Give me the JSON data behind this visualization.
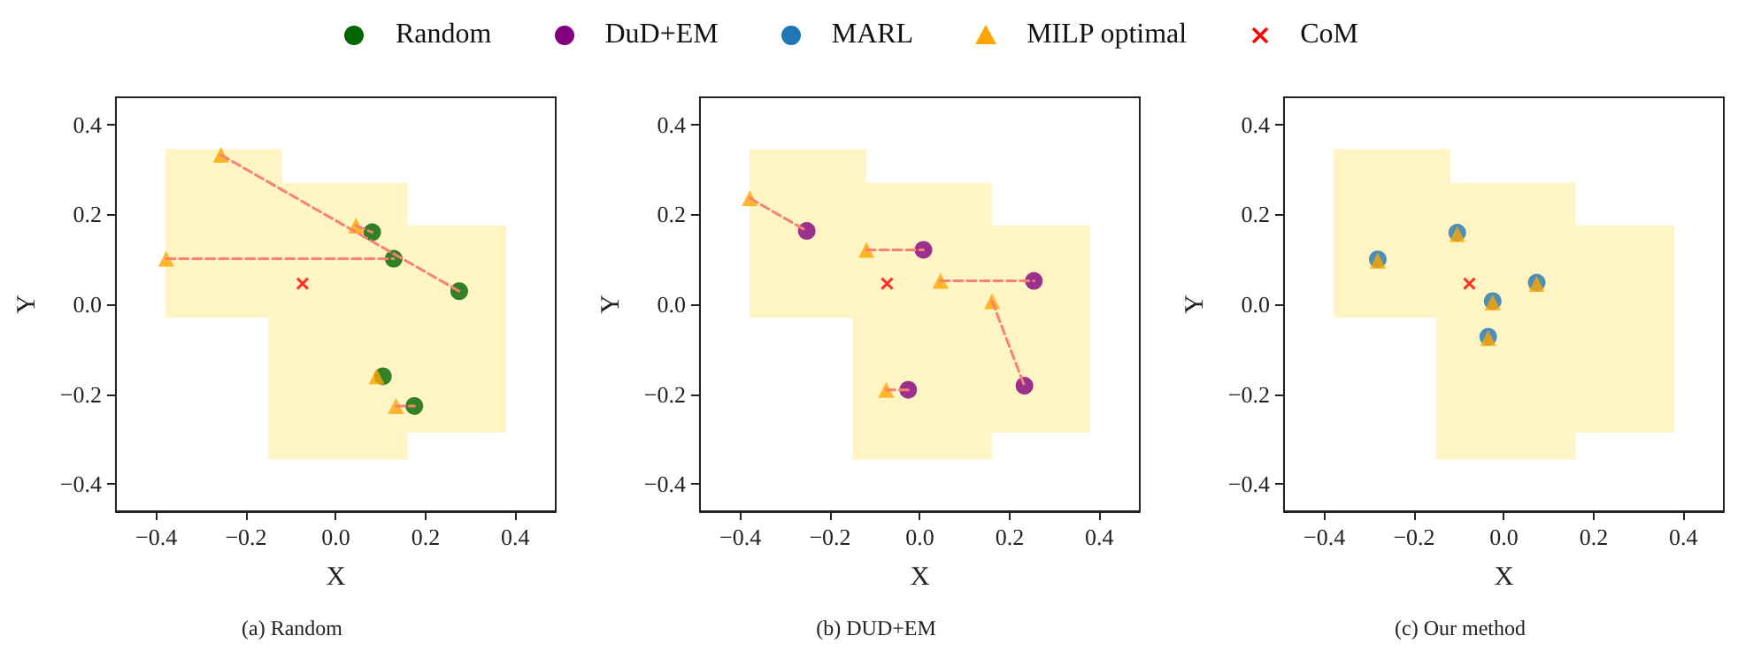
{
  "chart_data": [
    {
      "type": "scatter",
      "title": "(a) Random",
      "xlabel": "X",
      "ylabel": "Y",
      "legend": "top",
      "grid": false,
      "xlim": [
        -0.49,
        0.49
      ],
      "ylim": [
        -0.46,
        0.46
      ],
      "xticks": [
        {
          "value": -0.4,
          "label": "−0.4"
        },
        {
          "value": -0.2,
          "label": "−0.2"
        },
        {
          "value": 0,
          "label": "0.0"
        },
        {
          "value": 0.2,
          "label": "0.2"
        },
        {
          "value": 0.4,
          "label": "0.4"
        }
      ],
      "yticks": [
        {
          "value": -0.4,
          "label": "−0.4"
        },
        {
          "value": -0.2,
          "label": "−0.2"
        },
        {
          "value": 0,
          "label": "0.0"
        },
        {
          "value": 0.2,
          "label": "0.2"
        },
        {
          "value": 0.4,
          "label": "0.4"
        }
      ],
      "series": [
        {
          "type": "area",
          "color": "#fff5c4",
          "x": [
            -0.38,
            -0.12,
            -0.12,
            0.16,
            0.16,
            0.38,
            0.38,
            0.16,
            0.16,
            -0.15,
            -0.15,
            -0.38
          ],
          "values": [
            0.345,
            0.345,
            0.27,
            0.27,
            0.175,
            0.175,
            -0.285,
            -0.285,
            -0.345,
            -0.345,
            -0.03,
            -0.03
          ]
        },
        {
          "type": "line",
          "line_style": "dashed",
          "color": "#fa8072",
          "x": [
            -0.256,
            0.275
          ],
          "values": [
            0.332,
            0.029
          ]
        },
        {
          "type": "line",
          "line_style": "dashed",
          "color": "#fa8072",
          "x": [
            0.045,
            0.081
          ],
          "values": [
            0.175,
            0.16
          ]
        },
        {
          "type": "line",
          "line_style": "dashed",
          "color": "#fa8072",
          "x": [
            -0.378,
            0.129
          ],
          "values": [
            0.101,
            0.101
          ]
        },
        {
          "type": "line",
          "line_style": "dashed",
          "color": "#fa8072",
          "x": [
            0.134,
            0.175
          ],
          "values": [
            -0.226,
            -0.226
          ]
        },
        {
          "name": "Random",
          "marker": "circle",
          "color": "#006400",
          "x": [
            0.081,
            0.129,
            0.275,
            0.105,
            0.175
          ],
          "values": [
            0.16,
            0.101,
            0.029,
            -0.16,
            -0.226
          ]
        },
        {
          "name": "MILP optimal",
          "marker": "triangle",
          "color": "#ffa500",
          "x": [
            -0.256,
            0.045,
            -0.378,
            0.091,
            0.134
          ],
          "values": [
            0.332,
            0.175,
            0.101,
            -0.16,
            -0.226
          ]
        },
        {
          "name": "CoM",
          "marker": "cross",
          "color": "#ff0000",
          "x": [
            -0.074
          ],
          "values": [
            0.046
          ]
        }
      ]
    },
    {
      "type": "scatter",
      "title": "(b) DUD+EM",
      "xlabel": "X",
      "ylabel": "Y",
      "grid": false,
      "xlim": [
        -0.49,
        0.49
      ],
      "ylim": [
        -0.46,
        0.46
      ],
      "xticks": [
        {
          "value": -0.4,
          "label": "−0.4"
        },
        {
          "value": -0.2,
          "label": "−0.2"
        },
        {
          "value": 0,
          "label": "0.0"
        },
        {
          "value": 0.2,
          "label": "0.2"
        },
        {
          "value": 0.4,
          "label": "0.4"
        }
      ],
      "yticks": [
        {
          "value": -0.4,
          "label": "−0.4"
        },
        {
          "value": -0.2,
          "label": "−0.2"
        },
        {
          "value": 0,
          "label": "0.0"
        },
        {
          "value": 0.2,
          "label": "0.2"
        },
        {
          "value": 0.4,
          "label": "0.4"
        }
      ],
      "series": [
        {
          "type": "area",
          "color": "#fff5c4",
          "x": [
            -0.38,
            -0.12,
            -0.12,
            0.16,
            0.16,
            0.38,
            0.38,
            0.16,
            0.16,
            -0.15,
            -0.15,
            -0.38
          ],
          "values": [
            0.345,
            0.345,
            0.27,
            0.27,
            0.175,
            0.175,
            -0.285,
            -0.285,
            -0.345,
            -0.345,
            -0.03,
            -0.03
          ]
        },
        {
          "type": "line",
          "line_style": "dashed",
          "color": "#fa8072",
          "x": [
            -0.379,
            -0.252
          ],
          "values": [
            0.236,
            0.163
          ]
        },
        {
          "type": "line",
          "line_style": "dashed",
          "color": "#fa8072",
          "x": [
            -0.119,
            0.008
          ],
          "values": [
            0.121,
            0.121
          ]
        },
        {
          "type": "line",
          "line_style": "dashed",
          "color": "#fa8072",
          "x": [
            0.046,
            0.254
          ],
          "values": [
            0.052,
            0.052
          ]
        },
        {
          "type": "line",
          "line_style": "dashed",
          "color": "#fa8072",
          "x": [
            0.161,
            0.233
          ],
          "values": [
            0.007,
            -0.181
          ]
        },
        {
          "type": "line",
          "line_style": "dashed",
          "color": "#fa8072",
          "x": [
            -0.075,
            -0.026
          ],
          "values": [
            -0.19,
            -0.19
          ]
        },
        {
          "name": "DuD+EM",
          "marker": "circle",
          "color": "#800080",
          "x": [
            -0.252,
            0.008,
            0.254,
            0.233,
            -0.026
          ],
          "values": [
            0.163,
            0.121,
            0.052,
            -0.181,
            -0.19
          ]
        },
        {
          "name": "MILP optimal",
          "marker": "triangle",
          "color": "#ffa500",
          "x": [
            -0.379,
            -0.119,
            0.046,
            0.161,
            -0.075
          ],
          "values": [
            0.236,
            0.121,
            0.052,
            0.007,
            -0.19
          ]
        },
        {
          "name": "CoM",
          "marker": "cross",
          "color": "#ff0000",
          "x": [
            -0.073
          ],
          "values": [
            0.046
          ]
        }
      ]
    },
    {
      "type": "scatter",
      "title": "(c) Our method",
      "xlabel": "X",
      "ylabel": "Y",
      "grid": false,
      "xlim": [
        -0.49,
        0.49
      ],
      "ylim": [
        -0.46,
        0.46
      ],
      "xticks": [
        {
          "value": -0.4,
          "label": "−0.4"
        },
        {
          "value": -0.2,
          "label": "−0.2"
        },
        {
          "value": 0,
          "label": "0.0"
        },
        {
          "value": 0.2,
          "label": "0.2"
        },
        {
          "value": 0.4,
          "label": "0.4"
        }
      ],
      "yticks": [
        {
          "value": -0.4,
          "label": "−0.4"
        },
        {
          "value": -0.2,
          "label": "−0.2"
        },
        {
          "value": 0,
          "label": "0.0"
        },
        {
          "value": 0.2,
          "label": "0.2"
        },
        {
          "value": 0.4,
          "label": "0.4"
        }
      ],
      "series": [
        {
          "type": "area",
          "color": "#fff5c4",
          "x": [
            -0.38,
            -0.12,
            -0.12,
            0.16,
            0.16,
            0.38,
            0.38,
            0.16,
            0.16,
            -0.15,
            -0.15,
            -0.38
          ],
          "values": [
            0.345,
            0.345,
            0.27,
            0.27,
            0.175,
            0.175,
            -0.285,
            -0.285,
            -0.345,
            -0.345,
            -0.03,
            -0.03
          ]
        },
        {
          "name": "MARL",
          "marker": "circle",
          "color": "#1f77b4",
          "x": [
            -0.281,
            -0.104,
            -0.025,
            0.073,
            -0.035
          ],
          "values": [
            0.1,
            0.159,
            0.007,
            0.048,
            -0.072
          ]
        },
        {
          "name": "MILP optimal",
          "marker": "triangle",
          "color": "#ffa500",
          "x": [
            -0.281,
            -0.104,
            -0.025,
            0.073,
            -0.035
          ],
          "values": [
            0.097,
            0.156,
            0.004,
            0.045,
            -0.075
          ]
        },
        {
          "name": "CoM",
          "marker": "cross",
          "color": "#ff0000",
          "x": [
            -0.077
          ],
          "values": [
            0.046
          ]
        }
      ]
    }
  ]
}
